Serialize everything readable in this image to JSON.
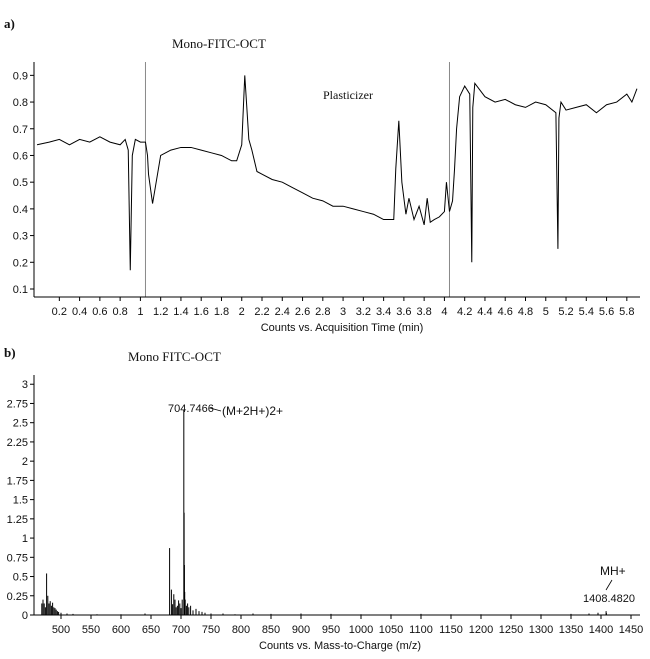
{
  "panels": [
    {
      "tag": "a)",
      "chart_data": {
        "type": "line",
        "title": "Mono-FITC-OCT",
        "annotation": "Plasticizer",
        "xlabel": "Counts vs. Acquisition Time (min)",
        "ylabel": "",
        "xlim": [
          -0.05,
          5.93
        ],
        "ylim": [
          0.07,
          0.95
        ],
        "x_ticks": [
          0.2,
          0.4,
          0.6,
          0.8,
          1,
          1.2,
          1.4,
          1.6,
          1.8,
          2,
          2.2,
          2.4,
          2.6,
          2.8,
          3,
          3.2,
          3.4,
          3.6,
          3.8,
          4,
          4.2,
          4.4,
          4.6,
          4.8,
          5,
          5.2,
          5.4,
          5.6,
          5.8
        ],
        "y_ticks": [
          0.1,
          0.2,
          0.3,
          0.4,
          0.5,
          0.6,
          0.7,
          0.8,
          0.9
        ],
        "vertical_lines": [
          1.05,
          4.05
        ],
        "series": [
          {
            "x": [
              -0.02,
              0.1,
              0.2,
              0.3,
              0.4,
              0.5,
              0.6,
              0.7,
              0.8,
              0.85,
              0.88,
              0.9,
              0.92,
              0.95,
              1.0,
              1.05,
              1.07,
              1.08,
              1.12,
              1.2,
              1.3,
              1.4,
              1.5,
              1.6,
              1.7,
              1.8,
              1.9,
              1.95,
              2.0,
              2.03,
              2.05,
              2.07,
              2.1,
              2.15,
              2.2,
              2.3,
              2.4,
              2.5,
              2.6,
              2.7,
              2.8,
              2.9,
              3.0,
              3.1,
              3.2,
              3.3,
              3.4,
              3.5,
              3.52,
              3.55,
              3.58,
              3.62,
              3.65,
              3.7,
              3.75,
              3.8,
              3.83,
              3.86,
              3.9,
              3.95,
              4.0,
              4.02,
              4.05,
              4.08,
              4.1,
              4.12,
              4.15,
              4.2,
              4.25,
              4.27,
              4.28,
              4.3,
              4.4,
              4.5,
              4.6,
              4.7,
              4.8,
              4.9,
              5.0,
              5.1,
              5.12,
              5.13,
              5.15,
              5.2,
              5.3,
              5.4,
              5.5,
              5.6,
              5.7,
              5.8,
              5.85,
              5.9
            ],
            "y": [
              0.64,
              0.65,
              0.66,
              0.64,
              0.66,
              0.65,
              0.67,
              0.65,
              0.64,
              0.66,
              0.62,
              0.17,
              0.6,
              0.66,
              0.65,
              0.65,
              0.6,
              0.53,
              0.42,
              0.6,
              0.62,
              0.63,
              0.63,
              0.62,
              0.61,
              0.6,
              0.58,
              0.58,
              0.64,
              0.9,
              0.78,
              0.66,
              0.62,
              0.54,
              0.53,
              0.51,
              0.5,
              0.48,
              0.46,
              0.44,
              0.43,
              0.41,
              0.41,
              0.4,
              0.39,
              0.38,
              0.36,
              0.36,
              0.55,
              0.73,
              0.5,
              0.38,
              0.44,
              0.36,
              0.41,
              0.34,
              0.44,
              0.35,
              0.36,
              0.37,
              0.39,
              0.5,
              0.39,
              0.43,
              0.55,
              0.7,
              0.82,
              0.86,
              0.83,
              0.2,
              0.78,
              0.87,
              0.82,
              0.8,
              0.81,
              0.79,
              0.78,
              0.8,
              0.79,
              0.76,
              0.25,
              0.74,
              0.8,
              0.77,
              0.78,
              0.79,
              0.76,
              0.79,
              0.8,
              0.83,
              0.8,
              0.85
            ]
          }
        ]
      }
    },
    {
      "tag": "b)",
      "chart_data": {
        "type": "bar",
        "title": "Mono FITC-OCT",
        "xlabel": "Counts vs. Mass-to-Charge (m/z)",
        "ylabel": "",
        "xlim": [
          455,
          1465
        ],
        "ylim": [
          0,
          3.12
        ],
        "x_ticks": [
          500,
          550,
          600,
          650,
          700,
          750,
          800,
          850,
          900,
          950,
          1000,
          1050,
          1100,
          1150,
          1200,
          1250,
          1300,
          1350,
          1400,
          1450
        ],
        "y_ticks": [
          0,
          0.25,
          0.5,
          0.75,
          1,
          1.25,
          1.5,
          1.75,
          2,
          2.25,
          2.5,
          2.75,
          3
        ],
        "annotations": [
          {
            "text": "704.7466",
            "x": 704.7,
            "y": 2.67
          },
          {
            "text": "(M+2H+)2+",
            "x": 704.7,
            "y": 2.67
          },
          {
            "text": "MH+",
            "x": 1408.5,
            "y": 0.05
          },
          {
            "text": "1408.4820",
            "x": 1408.5,
            "y": 0.05
          }
        ],
        "peaks": {
          "mz": [
            468,
            470,
            472,
            474,
            476,
            478,
            480,
            482,
            484,
            486,
            488,
            490,
            492,
            494,
            496,
            500,
            510,
            520,
            560,
            600,
            640,
            681,
            684,
            686,
            688,
            690,
            692,
            694,
            696,
            698,
            700,
            702,
            704.7,
            705.2,
            705.7,
            706.2,
            707,
            709,
            711,
            713,
            716,
            720,
            725,
            730,
            735,
            740,
            750,
            770,
            790,
            820,
            850,
            900,
            950,
            1000,
            1050,
            1100,
            1150,
            1200,
            1250,
            1300,
            1350,
            1380,
            1395,
            1408.5,
            1409
          ],
          "intensity": [
            0.15,
            0.2,
            0.15,
            0.1,
            0.54,
            0.25,
            0.15,
            0.18,
            0.12,
            0.16,
            0.1,
            0.09,
            0.07,
            0.05,
            0.04,
            0.03,
            0.02,
            0.015,
            0.01,
            0.01,
            0.02,
            0.87,
            0.33,
            0.14,
            0.27,
            0.2,
            0.1,
            0.12,
            0.19,
            0.15,
            0.09,
            0.2,
            2.67,
            1.33,
            0.65,
            0.3,
            0.2,
            0.12,
            0.15,
            0.1,
            0.12,
            0.06,
            0.08,
            0.05,
            0.04,
            0.03,
            0.02,
            0.02,
            0.01,
            0.02,
            0.015,
            0.02,
            0.015,
            0.01,
            0.01,
            0.015,
            0.01,
            0.01,
            0.01,
            0.01,
            0.015,
            0.02,
            0.03,
            0.05,
            0.025
          ]
        }
      }
    }
  ]
}
